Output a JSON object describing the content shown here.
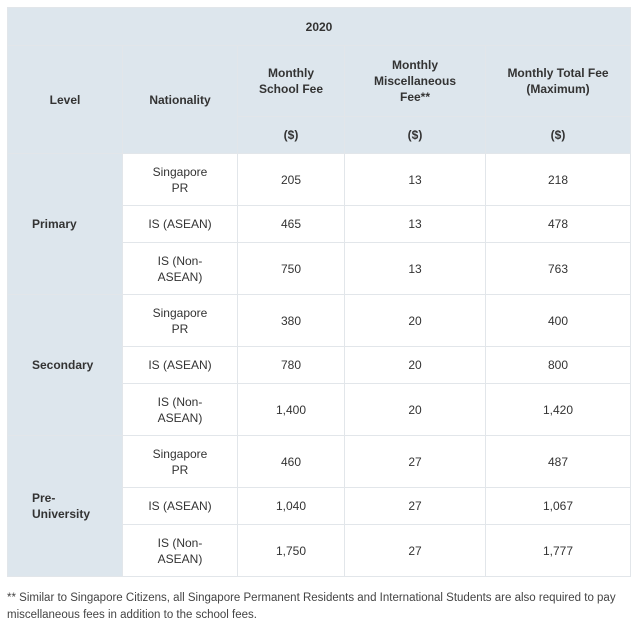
{
  "table": {
    "year": "2020",
    "headers": {
      "level": "Level",
      "nationality": "Nationality",
      "school_fee": "Monthly School Fee",
      "misc_fee": "Monthly Miscellaneous Fee**",
      "total_fee": "Monthly Total Fee (Maximum)",
      "unit": "($)"
    },
    "groups": [
      {
        "level": "Primary",
        "rows": [
          {
            "nationality": "Singapore PR",
            "school": "205",
            "misc": "13",
            "total": "218"
          },
          {
            "nationality": "IS (ASEAN)",
            "school": "465",
            "misc": "13",
            "total": "478"
          },
          {
            "nationality": "IS (Non-ASEAN)",
            "school": "750",
            "misc": "13",
            "total": "763"
          }
        ]
      },
      {
        "level": "Secondary",
        "rows": [
          {
            "nationality": "Singapore PR",
            "school": "380",
            "misc": "20",
            "total": "400"
          },
          {
            "nationality": "IS (ASEAN)",
            "school": "780",
            "misc": "20",
            "total": "800"
          },
          {
            "nationality": "IS (Non-ASEAN)",
            "school": "1,400",
            "misc": "20",
            "total": "1,420"
          }
        ]
      },
      {
        "level": "Pre-University",
        "rows": [
          {
            "nationality": "Singapore PR",
            "school": "460",
            "misc": "27",
            "total": "487"
          },
          {
            "nationality": "IS (ASEAN)",
            "school": "1,040",
            "misc": "27",
            "total": "1,067"
          },
          {
            "nationality": "IS (Non-ASEAN)",
            "school": "1,750",
            "misc": "27",
            "total": "1,777"
          }
        ]
      }
    ]
  },
  "footnote": "** Similar to Singapore Citizens, all Singapore Permanent Residents and International Students are also required to pay miscellaneous fees in addition to the school fees.",
  "colors": {
    "header_bg": "#dde6ed",
    "border": "#e2e6ea",
    "text": "#333333"
  }
}
